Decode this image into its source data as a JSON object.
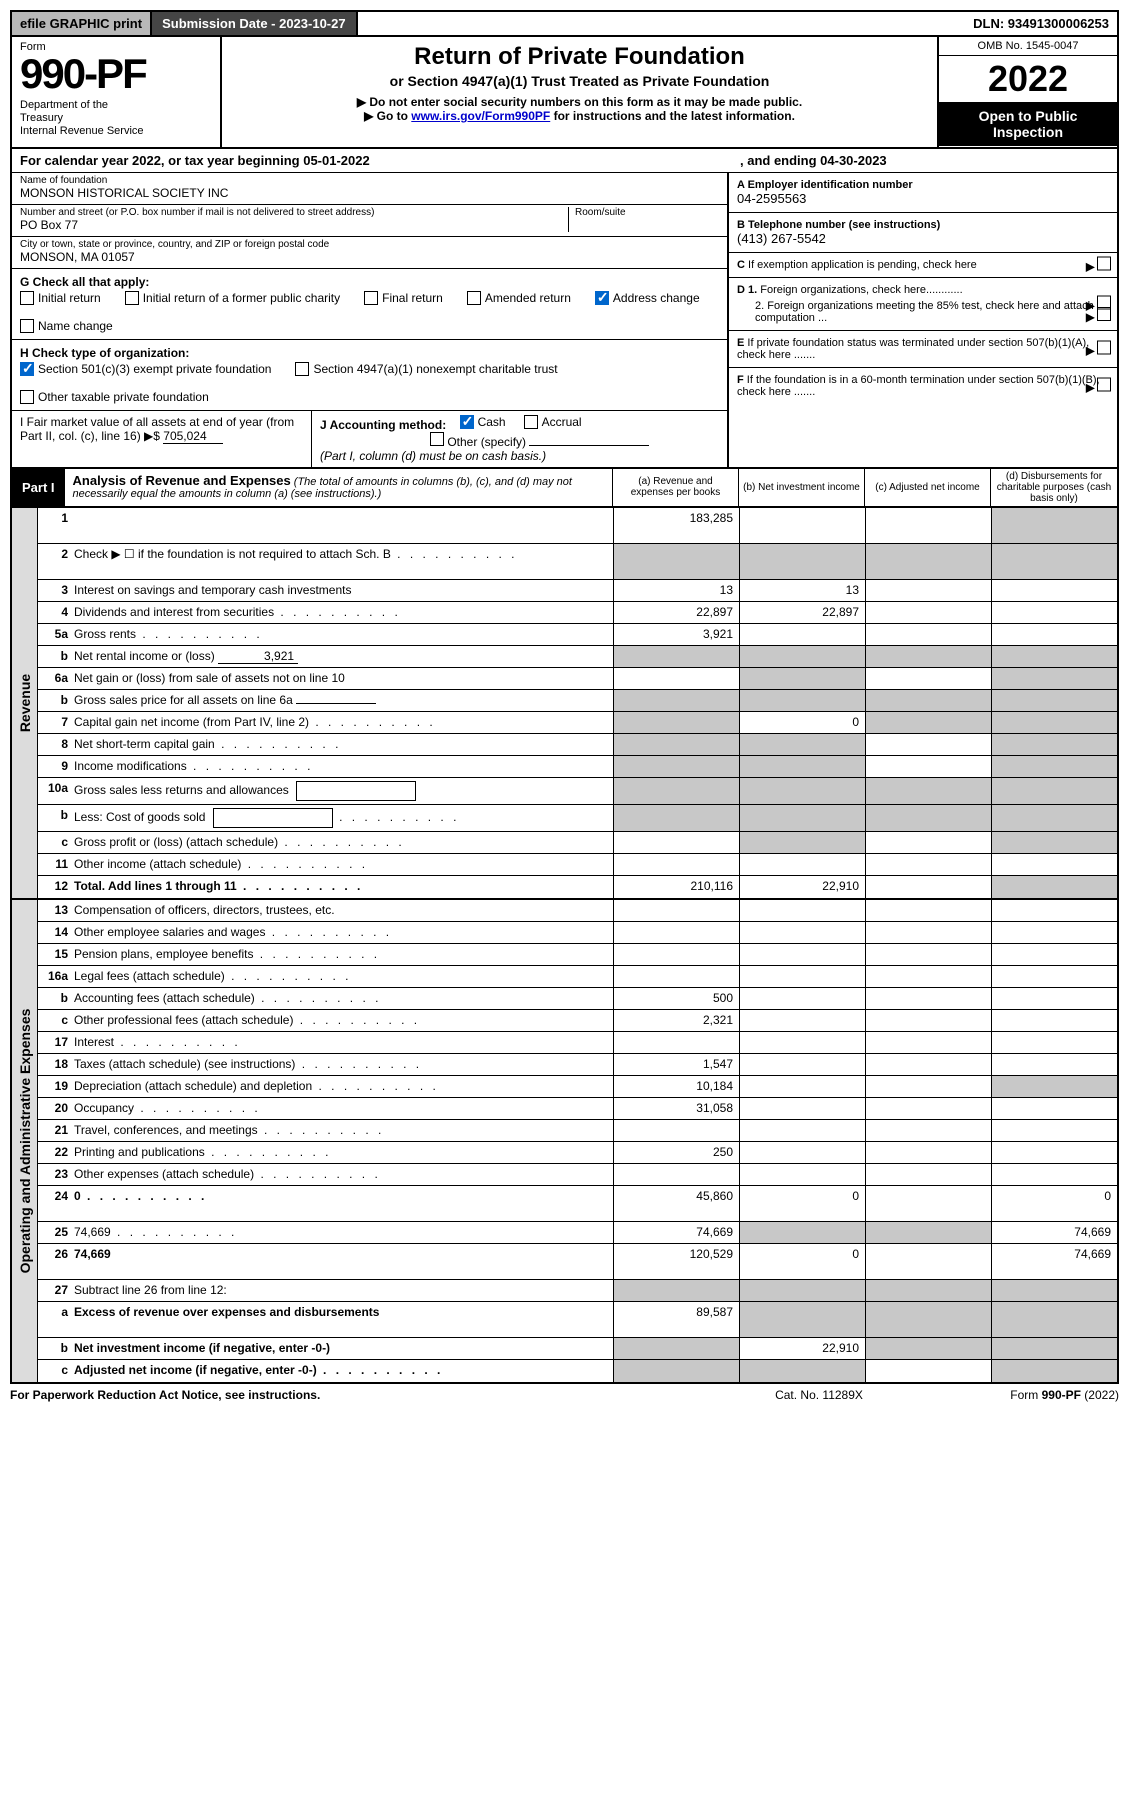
{
  "topbar": {
    "efile": "efile GRAPHIC print",
    "subdate_label": "Submission Date - 2023-10-27",
    "dln": "DLN: 93491300006253"
  },
  "header": {
    "form_word": "Form",
    "form_number": "990-PF",
    "dept": "Department of the Treasury\nInternal Revenue Service",
    "title": "Return of Private Foundation",
    "subtitle": "or Section 4947(a)(1) Trust Treated as Private Foundation",
    "instr1": "▶ Do not enter social security numbers on this form as it may be made public.",
    "instr2_pre": "▶ Go to ",
    "instr2_link": "www.irs.gov/Form990PF",
    "instr2_post": " for instructions and the latest information.",
    "omb": "OMB No. 1545-0047",
    "year": "2022",
    "open": "Open to Public Inspection"
  },
  "calyear": {
    "text_left": "For calendar year 2022, or tax year beginning 05-01-2022",
    "text_right": ", and ending 04-30-2023"
  },
  "entity": {
    "name_label": "Name of foundation",
    "name": "MONSON HISTORICAL SOCIETY INC",
    "addr_label": "Number and street (or P.O. box number if mail is not delivered to street address)",
    "addr": "PO Box 77",
    "room_label": "Room/suite",
    "room": "",
    "city_label": "City or town, state or province, country, and ZIP or foreign postal code",
    "city": "MONSON, MA  01057"
  },
  "ein": {
    "label": "A Employer identification number",
    "value": "04-2595563"
  },
  "phone": {
    "label": "B Telephone number (see instructions)",
    "value": "(413) 267-5542"
  },
  "c_text": "C If exemption application is pending, check here",
  "d1": "D 1. Foreign organizations, check here............",
  "d2": "2. Foreign organizations meeting the 85% test, check here and attach computation ...",
  "e_text": "E If private foundation status was terminated under section 507(b)(1)(A), check here .......",
  "f_text": "F If the foundation is in a 60-month termination under section 507(b)(1)(B), check here .......",
  "g": {
    "label": "G Check all that apply:",
    "items": [
      "Initial return",
      "Initial return of a former public charity",
      "Final return",
      "Amended return",
      "Address change",
      "Name change"
    ],
    "checked": [
      false,
      false,
      false,
      false,
      true,
      false
    ]
  },
  "h": {
    "label": "H Check type of organization:",
    "items": [
      "Section 501(c)(3) exempt private foundation",
      "Section 4947(a)(1) nonexempt charitable trust",
      "Other taxable private foundation"
    ],
    "checked": [
      true,
      false,
      false
    ]
  },
  "i": {
    "label": "I Fair market value of all assets at end of year (from Part II, col. (c), line 16)",
    "value": "705,024"
  },
  "j": {
    "label": "J Accounting method:",
    "items": [
      "Cash",
      "Accrual",
      "Other (specify)"
    ],
    "checked": [
      true,
      false,
      false
    ],
    "note": "(Part I, column (d) must be on cash basis.)"
  },
  "part1": {
    "label": "Part I",
    "title": "Analysis of Revenue and Expenses",
    "note": "(The total of amounts in columns (b), (c), and (d) may not necessarily equal the amounts in column (a) (see instructions).)",
    "cols": {
      "a": "(a) Revenue and expenses per books",
      "b": "(b) Net investment income",
      "c": "(c) Adjusted net income",
      "d": "(d) Disbursements for charitable purposes (cash basis only)"
    }
  },
  "side_labels": {
    "revenue": "Revenue",
    "expenses": "Operating and Administrative Expenses"
  },
  "rows": [
    {
      "n": "1",
      "d": "",
      "a": "183,285",
      "b": "",
      "c": "",
      "shade_d": true,
      "tall": true
    },
    {
      "n": "2",
      "d": "Check ▶ ☐ if the foundation is not required to attach Sch. B",
      "dots": true,
      "shade_a": true,
      "shade_b": true,
      "shade_c": true,
      "shade_d": true,
      "tall": true
    },
    {
      "n": "3",
      "d": "Interest on savings and temporary cash investments",
      "a": "13",
      "b": "13"
    },
    {
      "n": "4",
      "d": "Dividends and interest from securities",
      "dots": true,
      "a": "22,897",
      "b": "22,897"
    },
    {
      "n": "5a",
      "d": "Gross rents",
      "dots": true,
      "a": "3,921"
    },
    {
      "n": "b",
      "d": "Net rental income or (loss)",
      "uval": "3,921",
      "shade_a": true,
      "shade_b": true,
      "shade_c": true,
      "shade_d": true
    },
    {
      "n": "6a",
      "d": "Net gain or (loss) from sale of assets not on line 10",
      "shade_b": true,
      "shade_d": true
    },
    {
      "n": "b",
      "d": "Gross sales price for all assets on line 6a",
      "uval": "",
      "shade_a": true,
      "shade_b": true,
      "shade_c": true,
      "shade_d": true
    },
    {
      "n": "7",
      "d": "Capital gain net income (from Part IV, line 2)",
      "dots": true,
      "shade_a": true,
      "b": "0",
      "shade_c": true,
      "shade_d": true
    },
    {
      "n": "8",
      "d": "Net short-term capital gain",
      "dots": true,
      "shade_a": true,
      "shade_b": true,
      "shade_d": true
    },
    {
      "n": "9",
      "d": "Income modifications",
      "dots": true,
      "shade_a": true,
      "shade_b": true,
      "shade_d": true
    },
    {
      "n": "10a",
      "d": "Gross sales less returns and allowances",
      "ibox": true,
      "shade_a": true,
      "shade_b": true,
      "shade_c": true,
      "shade_d": true
    },
    {
      "n": "b",
      "d": "Less: Cost of goods sold",
      "dots": true,
      "ibox": true,
      "shade_a": true,
      "shade_b": true,
      "shade_c": true,
      "shade_d": true
    },
    {
      "n": "c",
      "d": "Gross profit or (loss) (attach schedule)",
      "dots": true,
      "shade_b": true,
      "shade_d": true
    },
    {
      "n": "11",
      "d": "Other income (attach schedule)",
      "dots": true
    },
    {
      "n": "12",
      "d": "Total. Add lines 1 through 11",
      "dots": true,
      "bold": true,
      "a": "210,116",
      "b": "22,910",
      "shade_d": true
    }
  ],
  "rows_exp": [
    {
      "n": "13",
      "d": "Compensation of officers, directors, trustees, etc."
    },
    {
      "n": "14",
      "d": "Other employee salaries and wages",
      "dots": true
    },
    {
      "n": "15",
      "d": "Pension plans, employee benefits",
      "dots": true
    },
    {
      "n": "16a",
      "d": "Legal fees (attach schedule)",
      "dots": true
    },
    {
      "n": "b",
      "d": "Accounting fees (attach schedule)",
      "dots": true,
      "a": "500"
    },
    {
      "n": "c",
      "d": "Other professional fees (attach schedule)",
      "dots": true,
      "a": "2,321"
    },
    {
      "n": "17",
      "d": "Interest",
      "dots": true
    },
    {
      "n": "18",
      "d": "Taxes (attach schedule) (see instructions)",
      "dots": true,
      "a": "1,547"
    },
    {
      "n": "19",
      "d": "Depreciation (attach schedule) and depletion",
      "dots": true,
      "a": "10,184",
      "shade_d": true
    },
    {
      "n": "20",
      "d": "Occupancy",
      "dots": true,
      "a": "31,058"
    },
    {
      "n": "21",
      "d": "Travel, conferences, and meetings",
      "dots": true
    },
    {
      "n": "22",
      "d": "Printing and publications",
      "dots": true,
      "a": "250"
    },
    {
      "n": "23",
      "d": "Other expenses (attach schedule)",
      "dots": true
    },
    {
      "n": "24",
      "d": "0",
      "dots": true,
      "bold": true,
      "a": "45,860",
      "b": "0",
      "tall": true
    },
    {
      "n": "25",
      "d": "74,669",
      "dots": true,
      "a": "74,669",
      "shade_b": true,
      "shade_c": true
    },
    {
      "n": "26",
      "d": "74,669",
      "bold": true,
      "a": "120,529",
      "b": "0",
      "tall": true
    },
    {
      "n": "27",
      "d": "Subtract line 26 from line 12:",
      "shade_a": true,
      "shade_b": true,
      "shade_c": true,
      "shade_d": true
    },
    {
      "n": "a",
      "d": "Excess of revenue over expenses and disbursements",
      "bold": true,
      "a": "89,587",
      "shade_b": true,
      "shade_c": true,
      "shade_d": true,
      "tall": true
    },
    {
      "n": "b",
      "d": "Net investment income (if negative, enter -0-)",
      "bold": true,
      "shade_a": true,
      "b": "22,910",
      "shade_c": true,
      "shade_d": true
    },
    {
      "n": "c",
      "d": "Adjusted net income (if negative, enter -0-)",
      "dots": true,
      "bold": true,
      "shade_a": true,
      "shade_b": true,
      "shade_d": true
    }
  ],
  "footer": {
    "left": "For Paperwork Reduction Act Notice, see instructions.",
    "mid": "Cat. No. 11289X",
    "right": "Form 990-PF (2022)"
  },
  "colors": {
    "band_bg": "#000000",
    "shade": "#c8c8c8",
    "side": "#dcdcdc",
    "check_blue": "#0066cc",
    "link": "#0000cc"
  }
}
